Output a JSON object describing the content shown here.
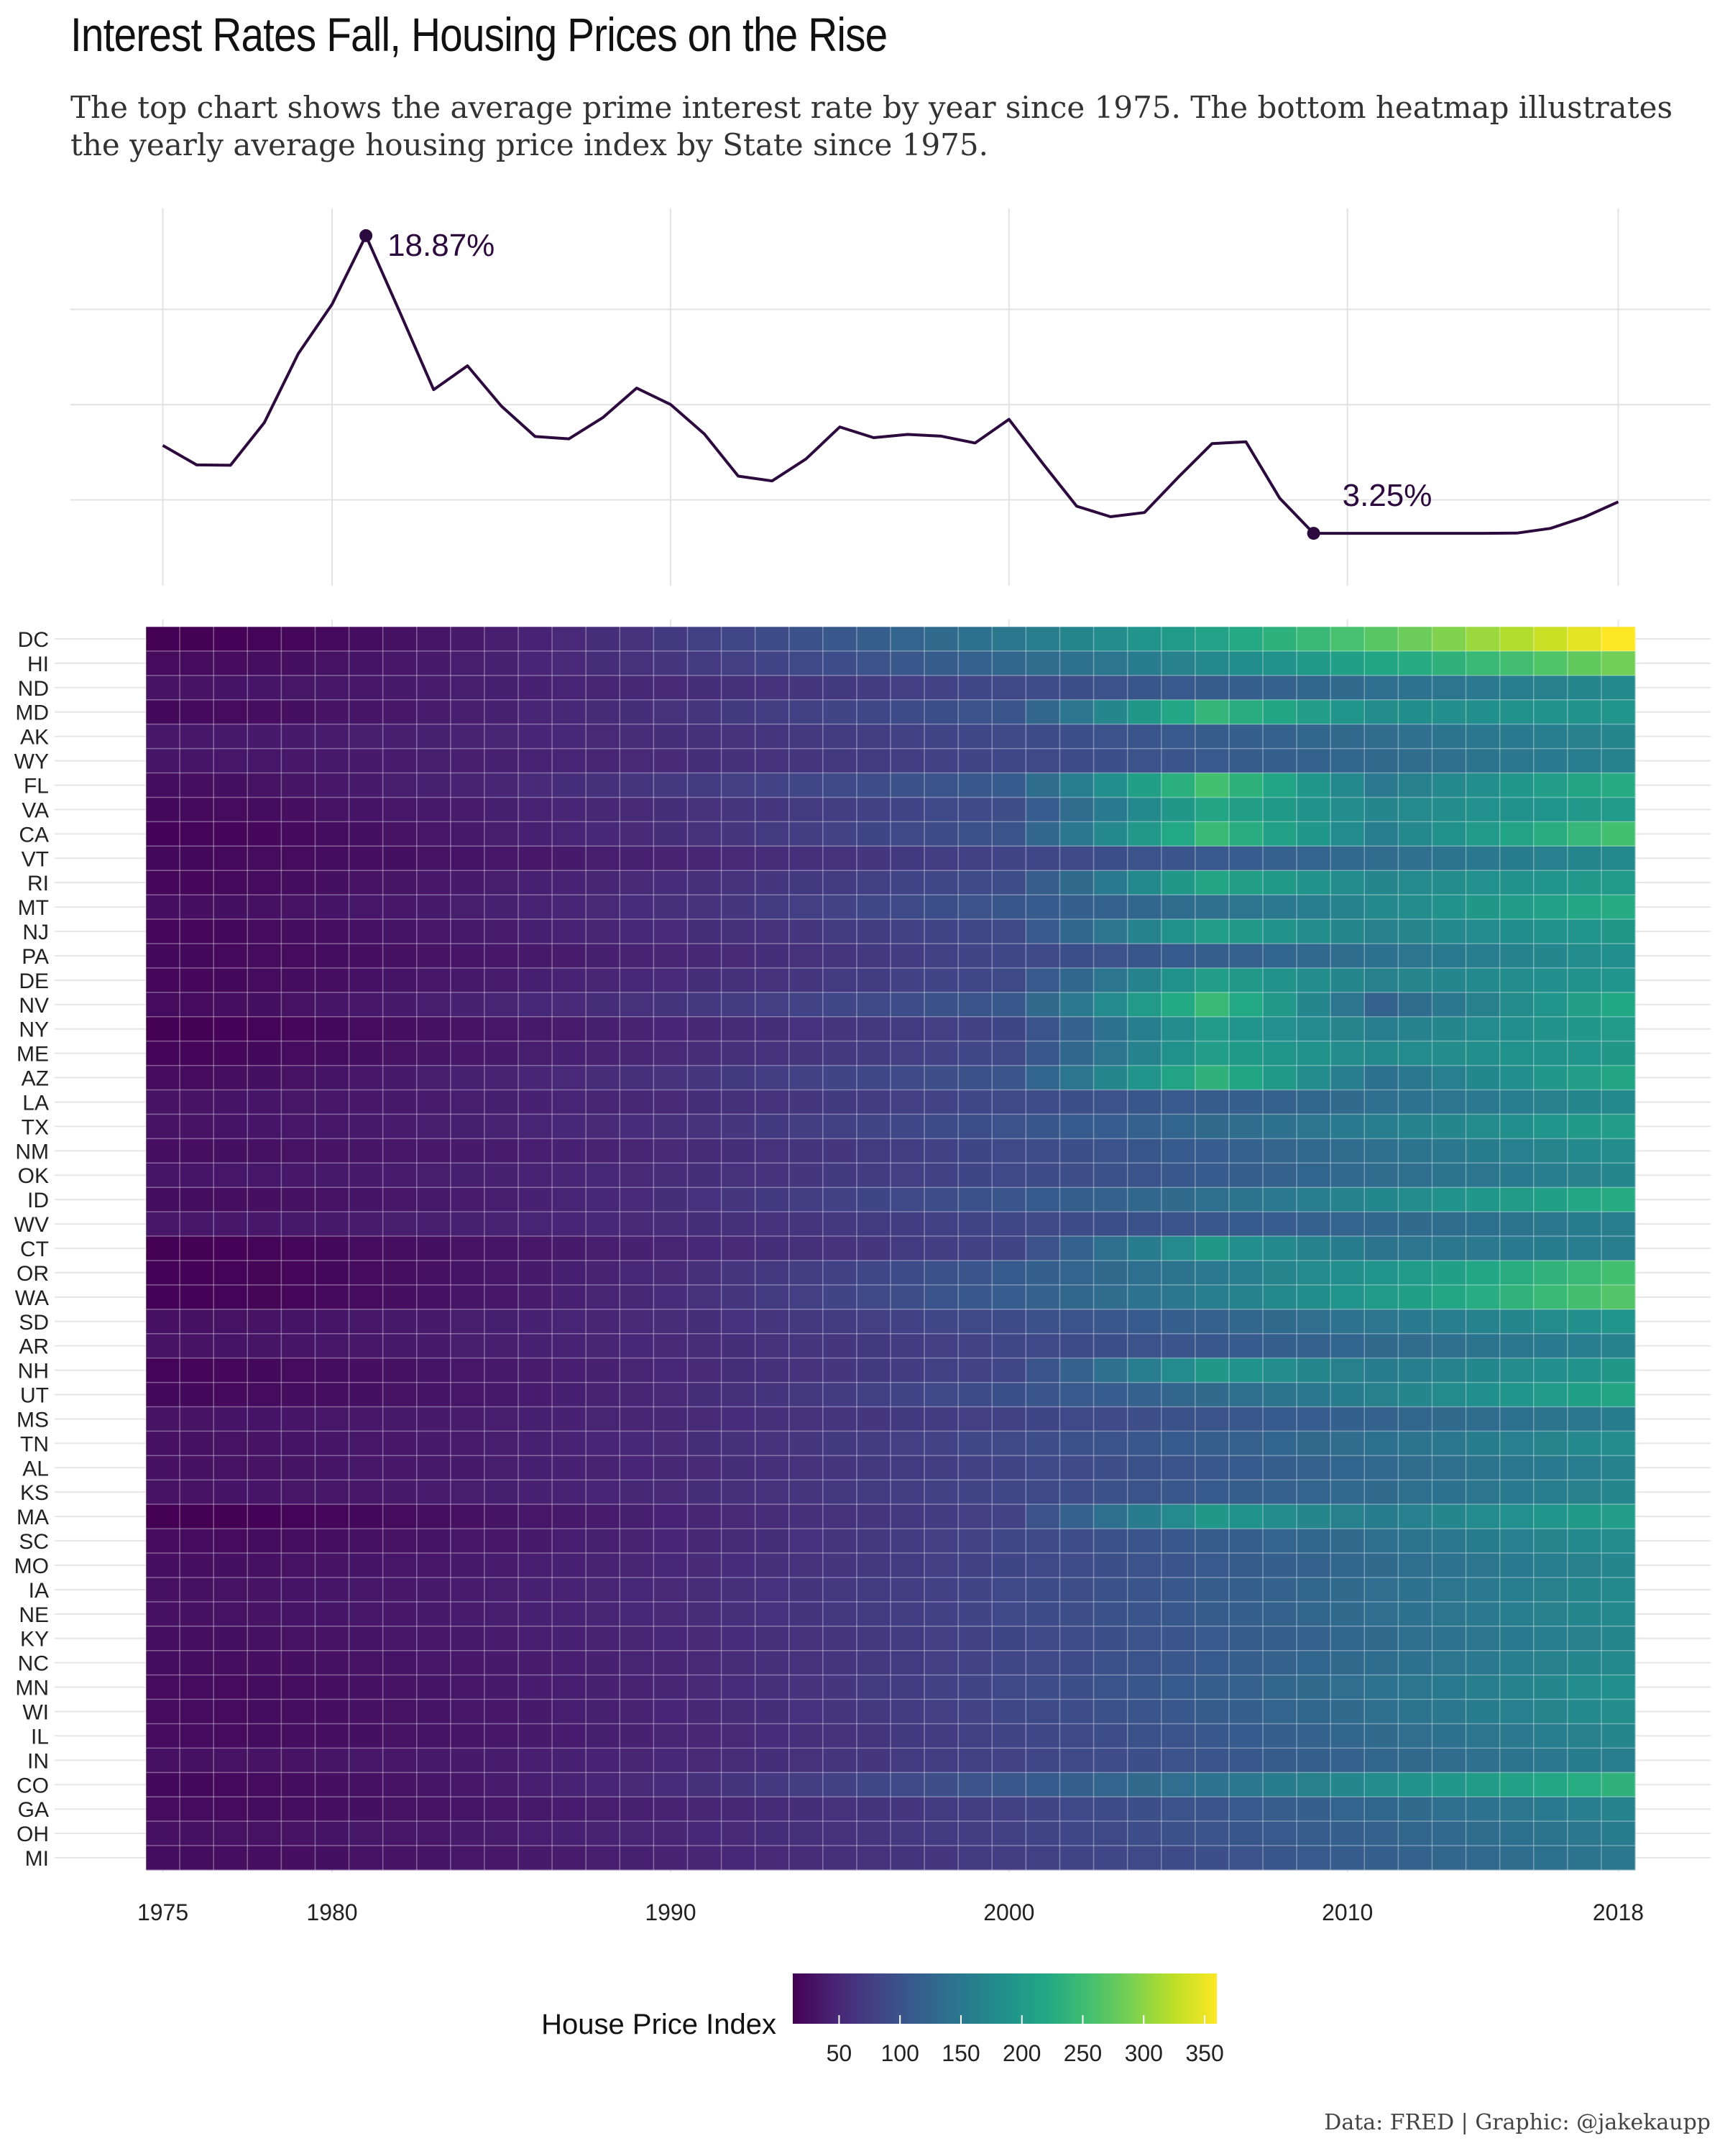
{
  "title": "Interest Rates Fall, Housing Prices on the Rise",
  "subtitle": "The top chart shows the average prime interest rate by year since 1975. The bottom heatmap illustrates the yearly average housing price index by State since 1975.",
  "caption": "Data: FRED | Graphic: @jakekaupp",
  "chart_data": [
    {
      "type": "line",
      "x": [
        1975,
        1976,
        1977,
        1978,
        1979,
        1980,
        1981,
        1982,
        1983,
        1984,
        1985,
        1986,
        1987,
        1988,
        1989,
        1990,
        1991,
        1992,
        1993,
        1994,
        1995,
        1996,
        1997,
        1998,
        1999,
        2000,
        2001,
        2002,
        2003,
        2004,
        2005,
        2006,
        2007,
        2008,
        2009,
        2010,
        2011,
        2012,
        2013,
        2014,
        2015,
        2016,
        2017,
        2018
      ],
      "y": [
        7.86,
        6.84,
        6.82,
        9.06,
        12.67,
        15.27,
        18.87,
        14.86,
        10.79,
        12.04,
        9.93,
        8.33,
        8.21,
        9.32,
        10.87,
        10.01,
        8.46,
        6.25,
        6.0,
        7.15,
        8.83,
        8.27,
        8.44,
        8.35,
        7.99,
        9.23,
        6.91,
        4.67,
        4.12,
        4.34,
        6.19,
        7.96,
        8.05,
        5.09,
        3.25,
        3.25,
        3.25,
        3.25,
        3.25,
        3.25,
        3.26,
        3.51,
        4.1,
        4.9
      ],
      "xlim": [
        1975,
        2018
      ],
      "ylim": [
        0.5,
        20.3
      ],
      "grid": true,
      "annotations": [
        {
          "x": 1981,
          "y": 18.87,
          "label": "18.87%"
        },
        {
          "x": 2009,
          "y": 3.25,
          "label": "3.25%"
        }
      ]
    },
    {
      "type": "heatmap",
      "x": [
        1975,
        1976,
        1977,
        1978,
        1979,
        1980,
        1981,
        1982,
        1983,
        1984,
        1985,
        1986,
        1987,
        1988,
        1989,
        1990,
        1991,
        1992,
        1993,
        1994,
        1995,
        1996,
        1997,
        1998,
        1999,
        2000,
        2001,
        2002,
        2003,
        2004,
        2005,
        2006,
        2007,
        2008,
        2009,
        2010,
        2011,
        2012,
        2013,
        2014,
        2015,
        2016,
        2017,
        2018
      ],
      "x_tick_labels": [
        "1975",
        "1980",
        "1990",
        "2000",
        "2010",
        "2018"
      ],
      "states": [
        "DC",
        "HI",
        "ND",
        "MD",
        "AK",
        "WY",
        "FL",
        "VA",
        "CA",
        "VT",
        "RI",
        "MT",
        "NJ",
        "PA",
        "DE",
        "NV",
        "NY",
        "ME",
        "AZ",
        "LA",
        "TX",
        "NM",
        "OK",
        "ID",
        "WV",
        "CT",
        "OR",
        "WA",
        "SD",
        "AR",
        "NH",
        "UT",
        "MS",
        "TN",
        "AL",
        "KS",
        "MA",
        "SC",
        "MO",
        "IA",
        "NE",
        "KY",
        "NC",
        "MN",
        "WI",
        "IL",
        "IN",
        "CO",
        "GA",
        "OH",
        "MI"
      ],
      "params": [
        {
          "base": 12,
          "final": 360,
          "peak": 0,
          "drop": 0
        },
        {
          "base": 22,
          "final": 285,
          "peak": 0,
          "drop": 0
        },
        {
          "base": 30,
          "final": 175,
          "peak": 0,
          "drop": 0
        },
        {
          "base": 20,
          "final": 190,
          "peak": 240,
          "drop": 0.25
        },
        {
          "base": 35,
          "final": 170,
          "peak": 0,
          "drop": 0
        },
        {
          "base": 32,
          "final": 165,
          "peak": 0,
          "drop": 0
        },
        {
          "base": 24,
          "final": 225,
          "peak": 255,
          "drop": 0.4
        },
        {
          "base": 20,
          "final": 200,
          "peak": 215,
          "drop": 0.2
        },
        {
          "base": 14,
          "final": 255,
          "peak": 245,
          "drop": 0.35
        },
        {
          "base": 20,
          "final": 175,
          "peak": 0,
          "drop": 0
        },
        {
          "base": 18,
          "final": 200,
          "peak": 215,
          "drop": 0.2
        },
        {
          "base": 26,
          "final": 225,
          "peak": 0,
          "drop": 0
        },
        {
          "base": 18,
          "final": 195,
          "peak": 205,
          "drop": 0.2
        },
        {
          "base": 20,
          "final": 185,
          "peak": 0,
          "drop": 0
        },
        {
          "base": 18,
          "final": 190,
          "peak": 205,
          "drop": 0.2
        },
        {
          "base": 22,
          "final": 220,
          "peak": 245,
          "drop": 0.5
        },
        {
          "base": 12,
          "final": 200,
          "peak": 200,
          "drop": 0.2
        },
        {
          "base": 16,
          "final": 195,
          "peak": 205,
          "drop": 0.15
        },
        {
          "base": 22,
          "final": 215,
          "peak": 235,
          "drop": 0.4
        },
        {
          "base": 30,
          "final": 175,
          "peak": 0,
          "drop": 0
        },
        {
          "base": 30,
          "final": 205,
          "peak": 0,
          "drop": 0
        },
        {
          "base": 26,
          "final": 180,
          "peak": 0,
          "drop": 0
        },
        {
          "base": 32,
          "final": 170,
          "peak": 0,
          "drop": 0
        },
        {
          "base": 24,
          "final": 225,
          "peak": 0,
          "drop": 0
        },
        {
          "base": 34,
          "final": 160,
          "peak": 0,
          "drop": 0
        },
        {
          "base": 12,
          "final": 160,
          "peak": 195,
          "drop": 0.25
        },
        {
          "base": 14,
          "final": 255,
          "peak": 0,
          "drop": 0
        },
        {
          "base": 14,
          "final": 265,
          "peak": 0,
          "drop": 0
        },
        {
          "base": 28,
          "final": 190,
          "peak": 0,
          "drop": 0
        },
        {
          "base": 30,
          "final": 165,
          "peak": 0,
          "drop": 0
        },
        {
          "base": 16,
          "final": 195,
          "peak": 195,
          "drop": 0.2
        },
        {
          "base": 20,
          "final": 215,
          "peak": 0,
          "drop": 0
        },
        {
          "base": 30,
          "final": 155,
          "peak": 0,
          "drop": 0
        },
        {
          "base": 28,
          "final": 180,
          "peak": 0,
          "drop": 0
        },
        {
          "base": 28,
          "final": 165,
          "peak": 0,
          "drop": 0
        },
        {
          "base": 30,
          "final": 170,
          "peak": 0,
          "drop": 0
        },
        {
          "base": 10,
          "final": 205,
          "peak": 195,
          "drop": 0.2
        },
        {
          "base": 22,
          "final": 180,
          "peak": 0,
          "drop": 0
        },
        {
          "base": 26,
          "final": 170,
          "peak": 0,
          "drop": 0
        },
        {
          "base": 28,
          "final": 175,
          "peak": 0,
          "drop": 0
        },
        {
          "base": 28,
          "final": 175,
          "peak": 0,
          "drop": 0
        },
        {
          "base": 26,
          "final": 170,
          "peak": 0,
          "drop": 0
        },
        {
          "base": 24,
          "final": 175,
          "peak": 0,
          "drop": 0
        },
        {
          "base": 22,
          "final": 185,
          "peak": 0,
          "drop": 0
        },
        {
          "base": 22,
          "final": 180,
          "peak": 0,
          "drop": 0
        },
        {
          "base": 22,
          "final": 170,
          "peak": 0,
          "drop": 0
        },
        {
          "base": 28,
          "final": 160,
          "peak": 0,
          "drop": 0
        },
        {
          "base": 20,
          "final": 235,
          "peak": 0,
          "drop": 0
        },
        {
          "base": 22,
          "final": 165,
          "peak": 0,
          "drop": 0
        },
        {
          "base": 28,
          "final": 155,
          "peak": 0,
          "drop": 0
        },
        {
          "base": 24,
          "final": 150,
          "peak": 0,
          "drop": 0
        }
      ],
      "legend_title": "House Price Index",
      "legend_ticks": [
        50,
        100,
        150,
        200,
        250,
        300,
        350
      ],
      "legend_range": [
        12,
        360
      ],
      "legend_placement": "bottom",
      "colors": [
        "#440154",
        "#482475",
        "#414487",
        "#355f8d",
        "#2a788e",
        "#21918c",
        "#22a884",
        "#44bf70",
        "#7ad151",
        "#bddf26",
        "#fde725"
      ],
      "line_color": "#2d0a3e"
    }
  ]
}
